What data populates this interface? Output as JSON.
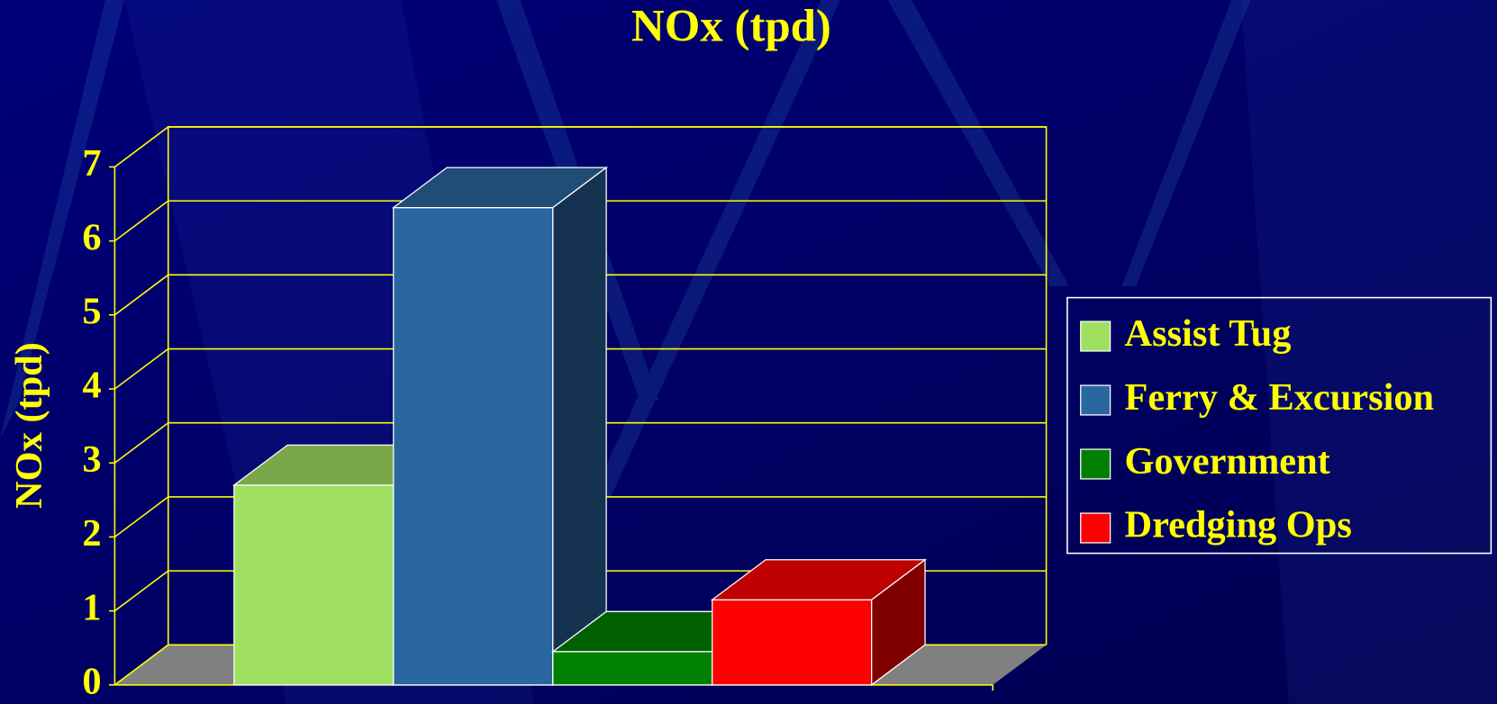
{
  "chart_data": {
    "type": "bar3d",
    "title": "NOx (tpd)",
    "y_label": "NOx (tpd)",
    "ylim": [
      0,
      7
    ],
    "yticks": [
      0,
      1,
      2,
      3,
      4,
      5,
      6,
      7
    ],
    "grid": true,
    "legend": "right",
    "series": [
      {
        "name": "Assist Tug",
        "color": "#a0e060",
        "values": [
          2.7
        ]
      },
      {
        "name": "Ferry & Excursion",
        "color": "#2a66a0",
        "values": [
          6.45
        ]
      },
      {
        "name": "Government",
        "color": "#008000",
        "values": [
          0.45
        ]
      },
      {
        "name": "Dredging Ops",
        "color": "#ff0000",
        "values": [
          1.15
        ]
      }
    ]
  }
}
